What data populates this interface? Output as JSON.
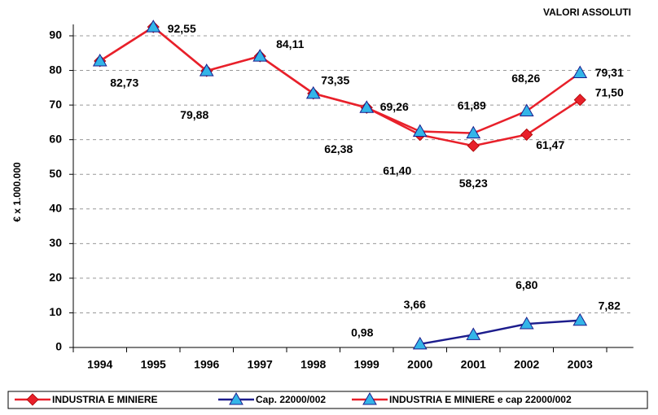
{
  "chart_data": {
    "type": "line",
    "title": "VALORI ASSOLUTI",
    "y_label": "€ x 1.000.000",
    "categories": [
      "1994",
      "1995",
      "1996",
      "1997",
      "1998",
      "1999",
      "2000",
      "2001",
      "2002",
      "2003"
    ],
    "ylim": [
      0,
      90
    ],
    "yticks": [
      0,
      10,
      20,
      30,
      40,
      50,
      60,
      70,
      80,
      90
    ],
    "grid": true,
    "legend": "bottom",
    "series": [
      {
        "name": "INDUSTRIA E MINIERE",
        "color": "#e8202a",
        "marker": "diamond",
        "marker_color": "#e8202a",
        "values": [
          82.73,
          92.55,
          79.88,
          84.11,
          73.35,
          69.26,
          61.4,
          58.23,
          61.47,
          71.5
        ],
        "value_labels": [
          null,
          null,
          null,
          null,
          null,
          null,
          "61,40",
          "58,23",
          "61,47",
          "71,50"
        ]
      },
      {
        "name": "Cap. 22000/002",
        "color": "#1c1c8c",
        "marker": "triangle",
        "marker_color": "#33b5e8",
        "values": [
          null,
          null,
          null,
          null,
          null,
          null,
          0.98,
          3.66,
          6.8,
          7.82
        ],
        "value_labels": [
          null,
          null,
          null,
          null,
          null,
          null,
          "0,98",
          "3,66",
          "6,80",
          "7,82"
        ]
      },
      {
        "name": "INDUSTRIA E MINIERE  e cap 22000/002",
        "color": "#e8202a",
        "marker": "triangle",
        "marker_color": "#33b5e8",
        "values": [
          82.73,
          92.55,
          79.88,
          84.11,
          73.35,
          69.26,
          62.38,
          61.89,
          68.26,
          79.31
        ],
        "value_labels": [
          "82,73",
          "92,55",
          "79,88",
          "84,11",
          "73,35",
          "69,26",
          "62,38",
          "61,89",
          "68,26",
          "79,31"
        ]
      }
    ]
  }
}
